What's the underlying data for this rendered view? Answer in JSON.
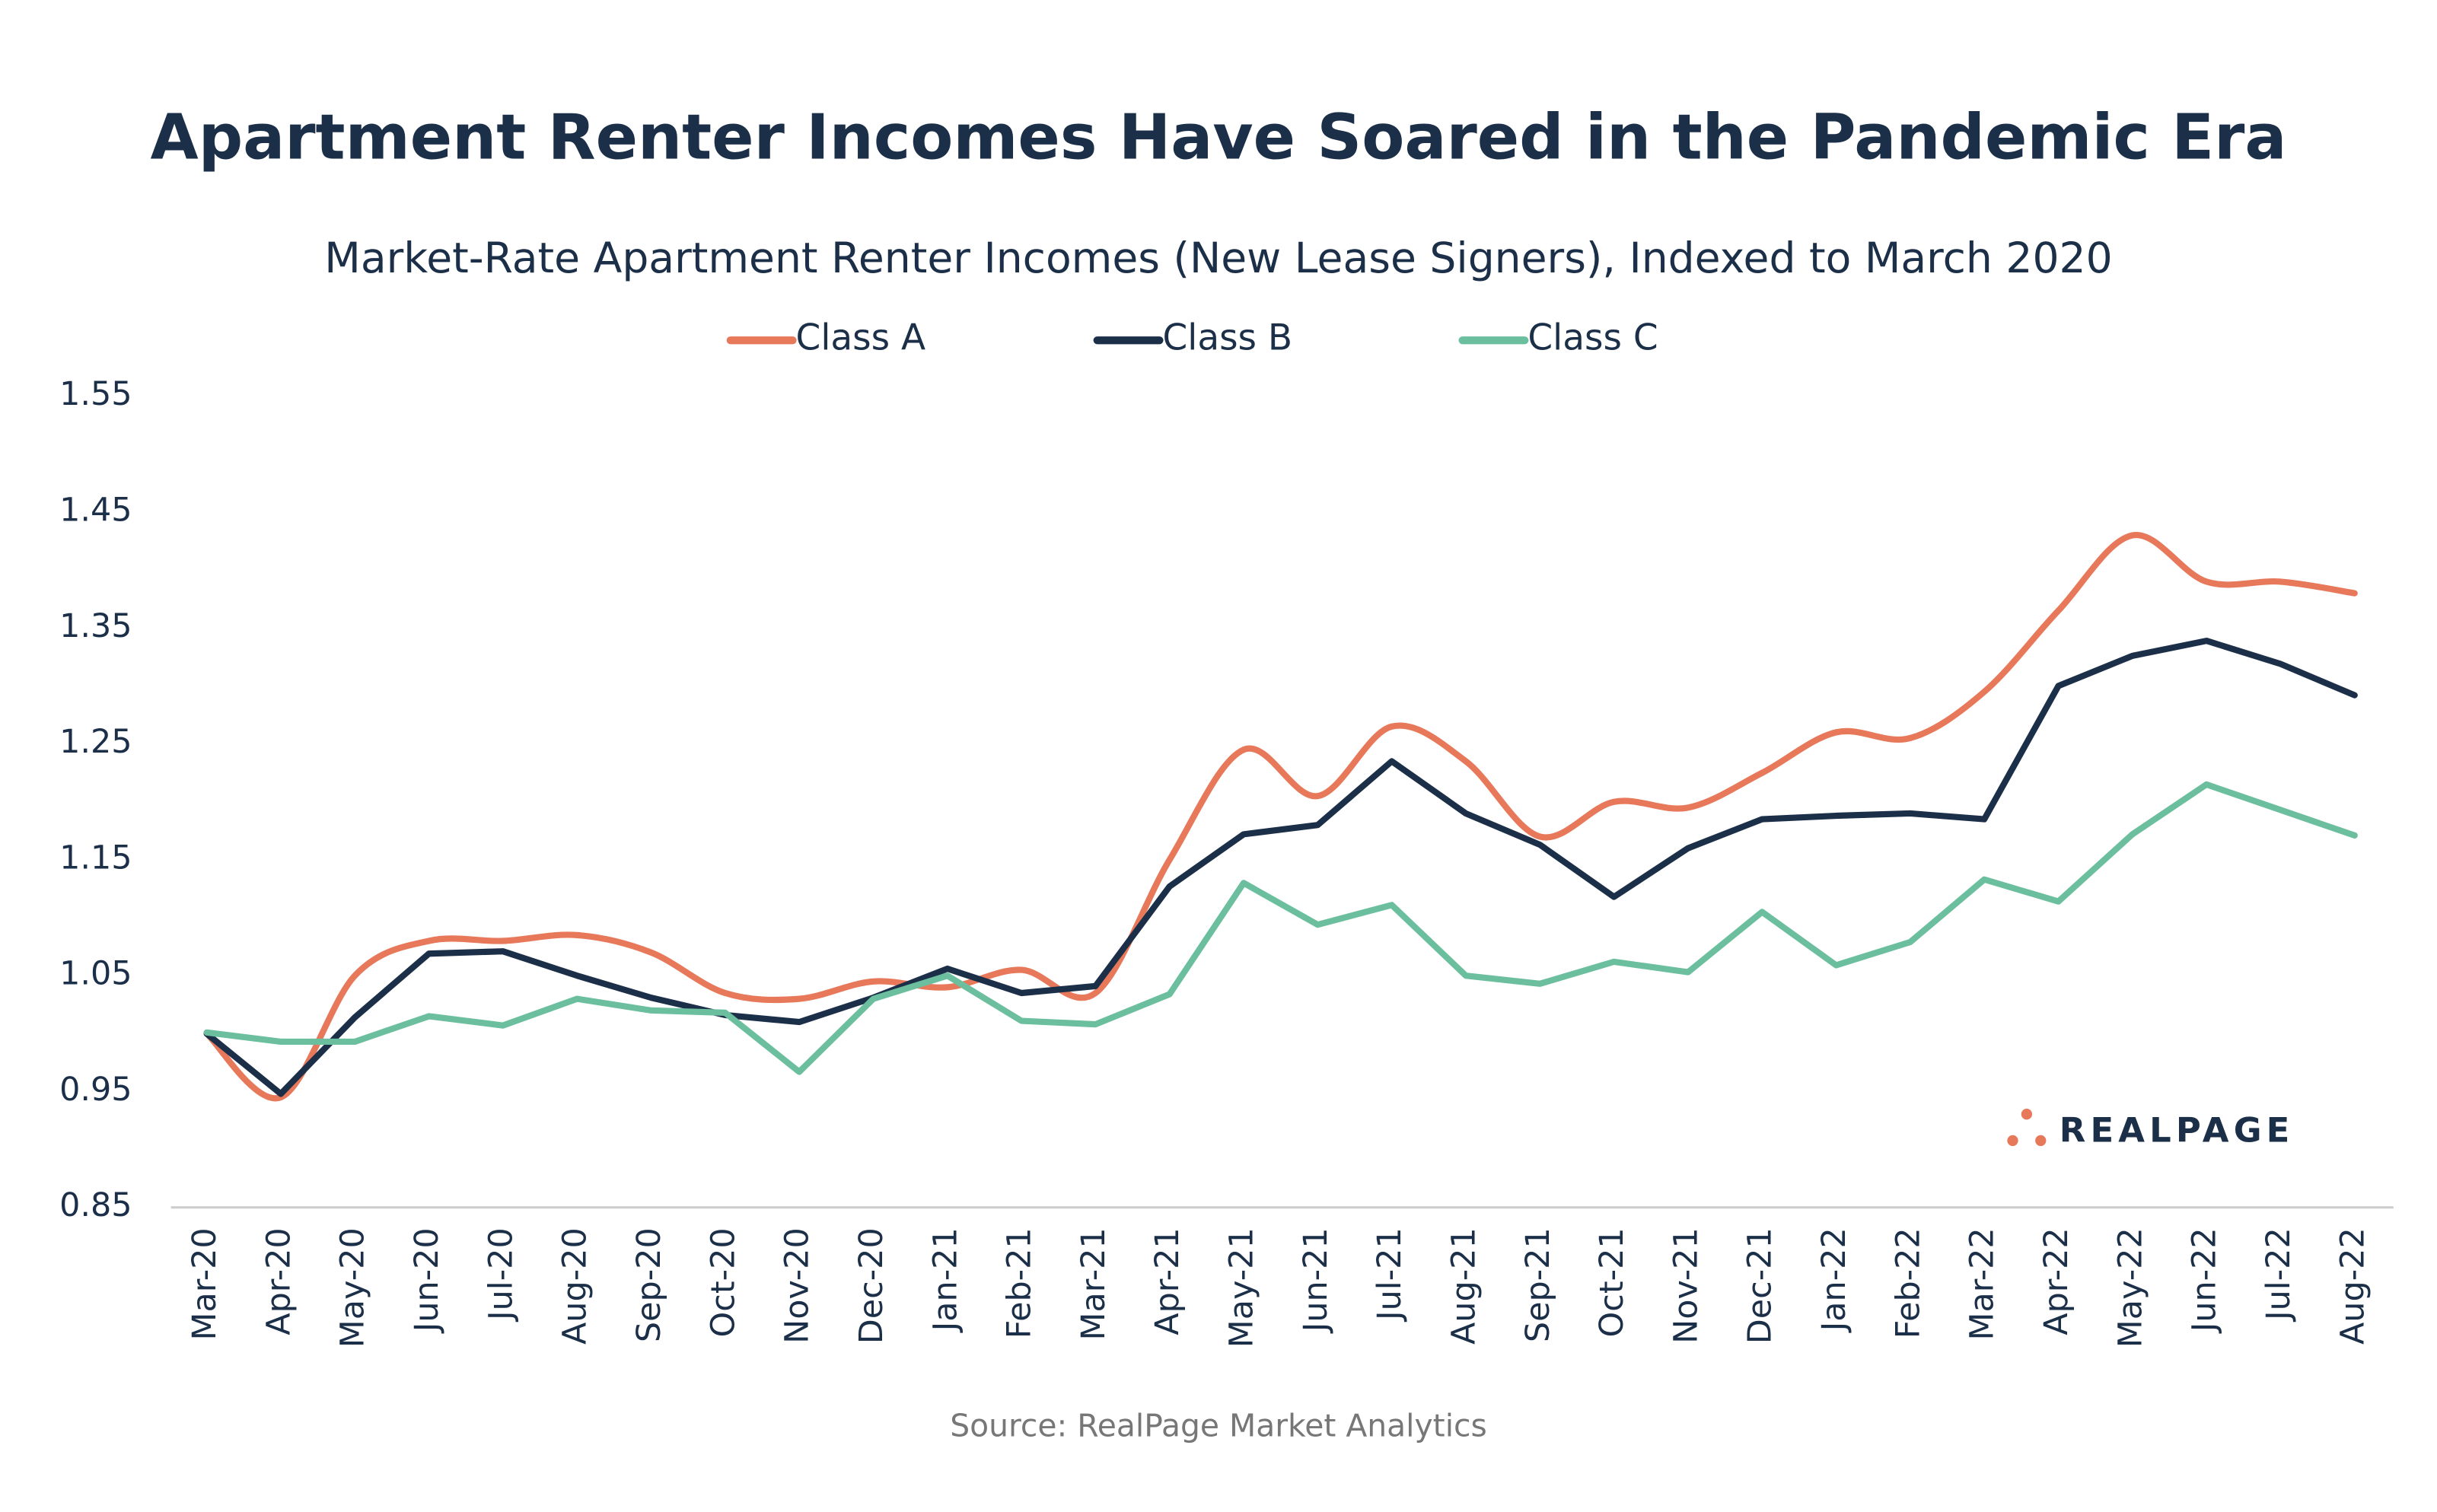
{
  "chart_data": {
    "type": "line",
    "title": "Apartment Renter Incomes Have Soared in the Pandemic Era",
    "subtitle": "Market-Rate Apartment Renter Incomes (New Lease Signers), Indexed to March 2020",
    "source": "Source: RealPage Market Analytics",
    "logo": "REALPAGE",
    "categories": [
      "Mar-20",
      "Apr-20",
      "May-20",
      "Jun-20",
      "Jul-20",
      "Aug-20",
      "Sep-20",
      "Oct-20",
      "Nov-20",
      "Dec-20",
      "Jan-21",
      "Feb-21",
      "Mar-21",
      "Apr-21",
      "May-21",
      "Jun-21",
      "Jul-21",
      "Aug-21",
      "Sep-21",
      "Oct-21",
      "Nov-21",
      "Dec-21",
      "Jan-22",
      "Feb-22",
      "Mar-22",
      "Apr-22",
      "May-22",
      "Jun-22",
      "Jul-22",
      "Aug-22"
    ],
    "series": [
      {
        "name": "Class A",
        "color": "#e8785a",
        "smooth": true,
        "values": [
          1.0,
          0.945,
          1.05,
          1.08,
          1.08,
          1.085,
          1.07,
          1.035,
          1.03,
          1.045,
          1.04,
          1.055,
          1.035,
          1.15,
          1.245,
          1.205,
          1.265,
          1.235,
          1.17,
          1.2,
          1.195,
          1.225,
          1.26,
          1.255,
          1.295,
          1.365,
          1.43,
          1.39,
          1.39,
          1.38
        ]
      },
      {
        "name": "Class B",
        "color": "#1c2f48",
        "smooth": false,
        "values": [
          1.0,
          0.948,
          1.014,
          1.069,
          1.071,
          1.05,
          1.031,
          1.016,
          1.01,
          1.031,
          1.056,
          1.035,
          1.041,
          1.127,
          1.172,
          1.18,
          1.235,
          1.19,
          1.163,
          1.118,
          1.16,
          1.185,
          1.188,
          1.19,
          1.185,
          1.3,
          1.326,
          1.339,
          1.319,
          1.292
        ]
      },
      {
        "name": "Class C",
        "color": "#6bbf9e",
        "smooth": false,
        "values": [
          1.001,
          0.993,
          0.993,
          1.015,
          1.007,
          1.03,
          1.02,
          1.018,
          0.967,
          1.03,
          1.05,
          1.011,
          1.008,
          1.034,
          1.13,
          1.094,
          1.111,
          1.05,
          1.043,
          1.062,
          1.053,
          1.105,
          1.059,
          1.079,
          1.133,
          1.114,
          1.172,
          1.215,
          1.193,
          1.171
        ]
      }
    ],
    "ylim": [
      0.85,
      1.55
    ],
    "yticks": [
      0.85,
      0.95,
      1.05,
      1.15,
      1.25,
      1.35,
      1.45,
      1.55
    ],
    "grid": false
  }
}
